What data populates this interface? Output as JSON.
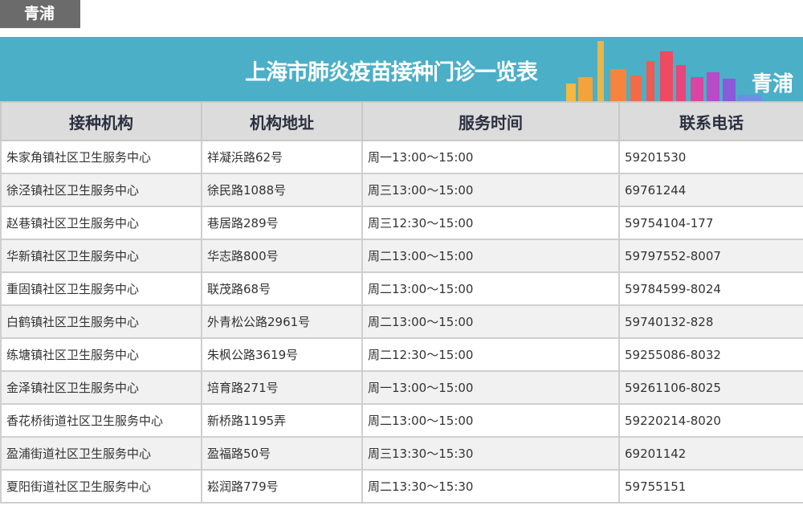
{
  "tag": "青浦",
  "banner": {
    "title": "上海市肺炎疫苗接种门诊一览表",
    "district": "青浦",
    "color": "#4aafc7"
  },
  "table": {
    "headers": [
      "接种机构",
      "机构地址",
      "服务时间",
      "联系电话"
    ],
    "rows": [
      [
        "朱家角镇社区卫生服务中心",
        "祥凝浜路62号",
        "周一13:00～15:00",
        "59201530"
      ],
      [
        "徐泾镇社区卫生服务中心",
        "徐民路1088号",
        "周三13:00～15:00",
        "69761244"
      ],
      [
        "赵巷镇社区卫生服务中心",
        "巷居路289号",
        "周三12:30～15:00",
        "59754104-177"
      ],
      [
        "华新镇社区卫生服务中心",
        "华志路800号",
        "周二13:00～15:00",
        "59797552-8007"
      ],
      [
        "重固镇社区卫生服务中心",
        "联茂路68号",
        "周二13:00～15:00",
        "59784599-8024"
      ],
      [
        "白鹤镇社区卫生服务中心",
        "外青松公路2961号",
        "周二13:00～15:00",
        "59740132-828"
      ],
      [
        "练塘镇社区卫生服务中心",
        "朱枫公路3619号",
        "周二12:30～15:00",
        "59255086-8032"
      ],
      [
        "金泽镇社区卫生服务中心",
        "培育路271号",
        "周一13:00～15:00",
        "59261106-8025"
      ],
      [
        "香花桥街道社区卫生服务中心",
        "新桥路1195弄",
        "周二13:00～15:00",
        "59220214-8020"
      ],
      [
        "盈浦街道社区卫生服务中心",
        "盈福路50号",
        "周三13:30～15:30",
        "69201142"
      ],
      [
        "夏阳街道社区卫生服务中心",
        "崧润路779号",
        "周二13:30～15:30",
        "59755151"
      ]
    ]
  }
}
